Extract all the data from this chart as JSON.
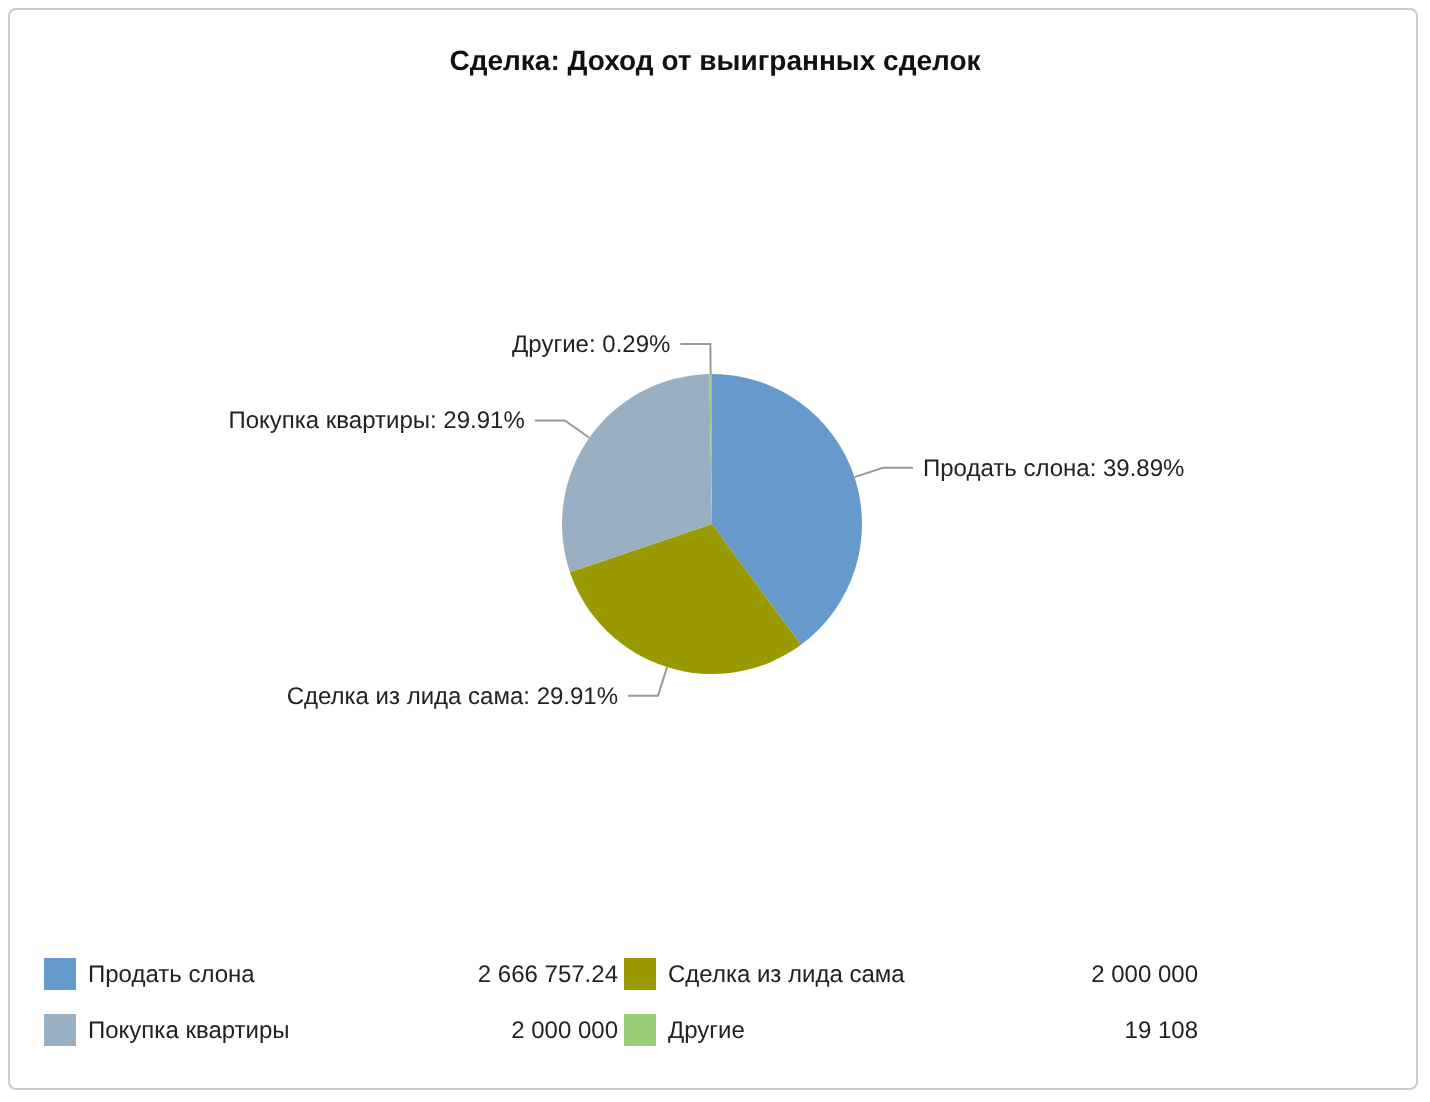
{
  "chart_data": {
    "type": "pie",
    "title": "Сделка: Доход от выигранных сделок",
    "categories": [
      "Продать слона",
      "Сделка из лида сама",
      "Покупка квартиры",
      "Другие"
    ],
    "values": [
      39.89,
      29.91,
      29.91,
      0.29
    ],
    "colors": [
      "#6699cc",
      "#999900",
      "#99b0c2",
      "#99cc77"
    ],
    "value_labels": [
      "Продать слона: 39.89%",
      "Сделка из лида сама: 29.91%",
      "Покупка квартиры: 29.91%",
      "Другие: 0.29%"
    ],
    "annotations": [
      "2 666 757.24",
      "2 000 000",
      "2 000 000",
      "19 108"
    ],
    "legend": "bottom"
  }
}
